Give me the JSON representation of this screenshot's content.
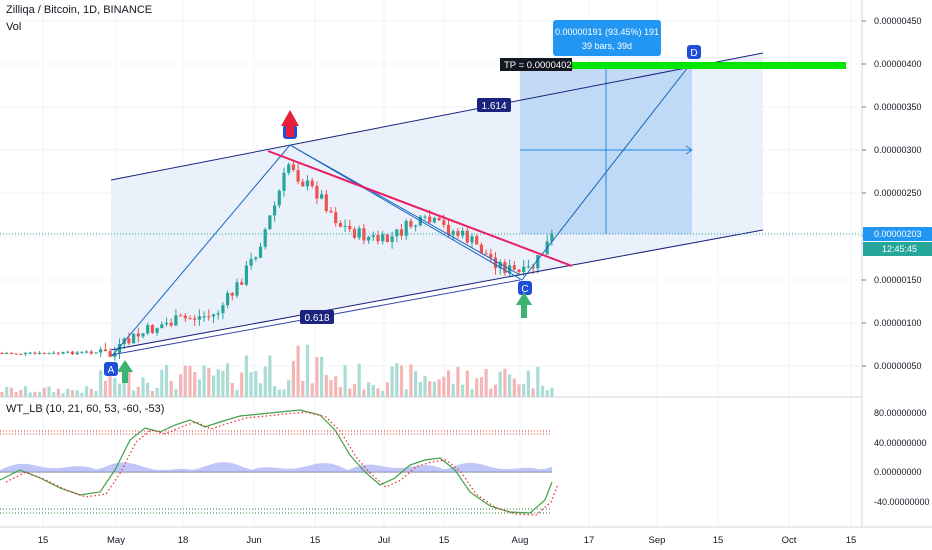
{
  "header": {
    "symbol": "Zilliqa / Bitcoin, 1D, BINANCE",
    "vol_label": "Vol",
    "indicator_label": "WT_LB (10, 21, 60, 53, -60, -53)"
  },
  "price_axis": {
    "ticks": [
      "0.00000450",
      "0.00000400",
      "0.00000350",
      "0.00000300",
      "0.00000250",
      "0.00000200",
      "0.00000150",
      "0.00000100",
      "0.00000050"
    ],
    "current_price": "0.00000203",
    "countdown": "12:45:45",
    "current_color": "#2196f3"
  },
  "osc_axis": {
    "ticks": [
      "80.00000000",
      "40.00000000",
      "0.00000000",
      "-40.00000000"
    ]
  },
  "time_axis": {
    "labels": [
      "15",
      "May",
      "18",
      "Jun",
      "15",
      "Jul",
      "15",
      "Aug",
      "17",
      "Sep",
      "15",
      "Oct",
      "15"
    ]
  },
  "annotations": {
    "measure_top": "0.00000191 (93.45%) 191",
    "measure_bottom": "39 bars, 39d",
    "tp_label": "TP = 0.0000402",
    "fib_upper": "1.614",
    "fib_lower": "0.618",
    "point_a": "A",
    "point_c": "C",
    "point_d": "D",
    "point_b": "B"
  },
  "colors": {
    "up": "#26a69a",
    "down": "#ef5350",
    "channel": "#1a237e",
    "projection": "#1e88e5",
    "tp_bar": "#00e600",
    "resistance": "#e91e63"
  },
  "chart_data": {
    "type": "candlestick",
    "xlabel": "",
    "ylabel": "",
    "ylim": [
      3e-07,
      4.7e-06
    ],
    "series": [
      {
        "name": "Zilliqa / Bitcoin",
        "values": [
          {
            "period": "late Apr",
            "close": 6.8e-07
          },
          {
            "period": "May",
            "close": 9e-07
          },
          {
            "period": "mid May",
            "close": 1.15e-06
          },
          {
            "period": "late May",
            "close": 1.7e-06
          },
          {
            "period": "early Jun",
            "close": 2.4e-06
          },
          {
            "period": "peak Jun",
            "close": 2.97e-06
          },
          {
            "period": "mid Jun",
            "close": 2.6e-06
          },
          {
            "period": "late Jun",
            "close": 2.2e-06
          },
          {
            "period": "Jul",
            "close": 2.05e-06
          },
          {
            "period": "mid Jul",
            "close": 2.25e-06
          },
          {
            "period": "late Jul",
            "close": 1.8e-06
          },
          {
            "period": "early Aug",
            "close": 1.63e-06
          },
          {
            "period": "last",
            "close": 2.03e-06
          }
        ]
      }
    ]
  }
}
